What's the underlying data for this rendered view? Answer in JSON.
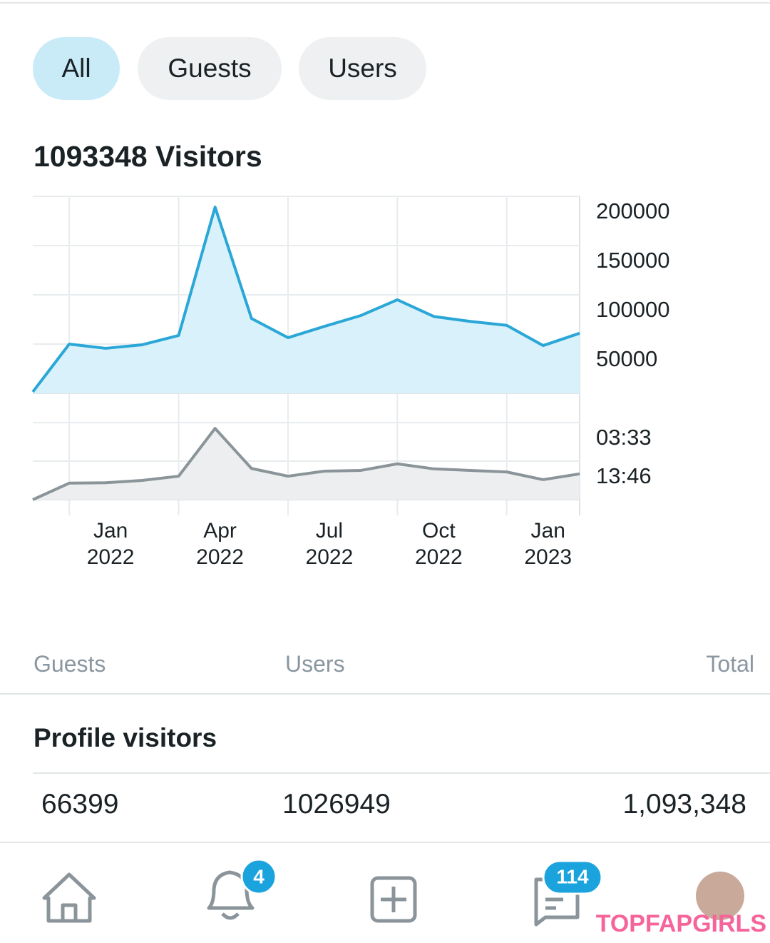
{
  "tabs": [
    "All",
    "Guests",
    "Users"
  ],
  "title": "1093348 Visitors",
  "chart_data": [
    {
      "type": "area",
      "color": "#2aa7d6",
      "fill": "#d9f1fa",
      "categories": [
        null,
        "Jan 2022",
        null,
        null,
        "Apr 2022",
        null,
        null,
        "Jul 2022",
        null,
        null,
        "Oct 2022",
        null,
        null,
        "Jan 2023",
        null,
        null
      ],
      "values": [
        1500,
        50000,
        45700,
        49300,
        58700,
        189000,
        76000,
        56500,
        68000,
        79000,
        95000,
        78000,
        73000,
        69000,
        48500,
        61000
      ],
      "ylim": [
        0,
        200000
      ],
      "yticks": [
        200000,
        150000,
        100000,
        50000
      ],
      "grid": true
    },
    {
      "type": "area",
      "color": "#8a9499",
      "fill": "#eceeef",
      "values": [
        0,
        0.43,
        0.44,
        0.5,
        0.61,
        1.85,
        0.81,
        0.61,
        0.74,
        0.76,
        0.93,
        0.8,
        0.76,
        0.72,
        0.52,
        0.67
      ],
      "ylim": [
        0,
        2
      ],
      "yticks": [
        {
          "value": 2,
          "label": "03:33"
        },
        {
          "value": 1,
          "label": "13:46"
        }
      ],
      "grid": true
    }
  ],
  "table": {
    "headers": [
      "Guests",
      "Users",
      "Total"
    ],
    "section": "Profile visitors",
    "row": [
      "66399",
      "1026949",
      "1,093,348"
    ]
  },
  "nav": {
    "badges": [
      "4",
      "114"
    ]
  },
  "watermark": "TOPFAPGIRLS"
}
